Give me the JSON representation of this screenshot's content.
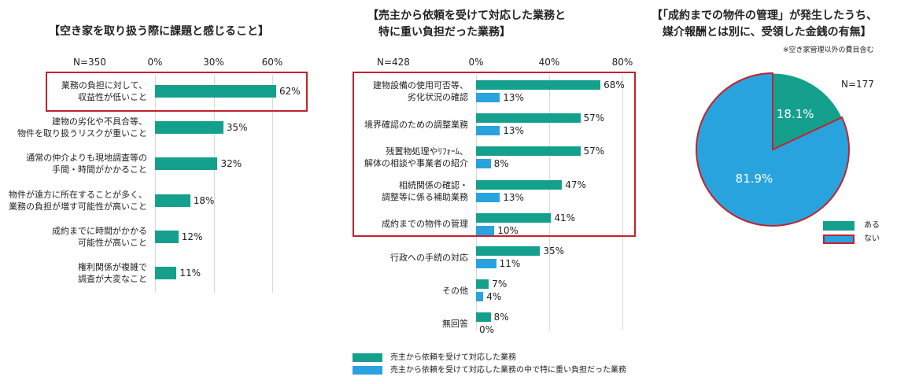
{
  "chart_data": [
    {
      "type": "bar",
      "orientation": "horizontal",
      "title": "【空き家を取り扱う際に課題と感じること】",
      "n_label": "N=350",
      "xlim": [
        0,
        60
      ],
      "x_ticks": [
        "0%",
        "30%",
        "60%"
      ],
      "grid": true,
      "categories": [
        [
          "業務の負担に対して、",
          "収益性が低いこと"
        ],
        [
          "建物の劣化や不具合等、",
          "物件を取り扱うリスクが重いこと"
        ],
        [
          "通常の仲介よりも現地調査等の",
          "手間・時間がかかること"
        ],
        [
          "物件が遠方に所在することが多く、",
          "業務の負担が増す可能性が高いこと"
        ],
        [
          "成約までに時間がかかる",
          "可能性が高いこと"
        ],
        [
          "権利関係が複雑で",
          "調査が大変なこと"
        ]
      ],
      "values": [
        62,
        35,
        32,
        18,
        12,
        11
      ],
      "value_labels": [
        "62%",
        "35%",
        "32%",
        "18%",
        "12%",
        "11%"
      ],
      "highlighted_categories": [
        0
      ],
      "color": "#15a08e"
    },
    {
      "type": "bar",
      "orientation": "horizontal",
      "title": [
        "【売主から依頼を受けて対応した業務と",
        "特に重い負担だった業務】"
      ],
      "n_label": "N=428",
      "xlim": [
        0,
        80
      ],
      "x_ticks": [
        "0%",
        "40%",
        "80%"
      ],
      "grid": true,
      "categories": [
        [
          "建物設備の使用可否等、",
          "劣化状況の確認"
        ],
        [
          "境界確認のための調整業務"
        ],
        [
          "残置物処理やﾘﾌｫｰﾑ、",
          "解体の相談や事業者の紹介"
        ],
        [
          "相続関係の確認・",
          "調整等に係る補助業務"
        ],
        [
          "成約までの物件の管理"
        ],
        [
          "行政への手続の対応"
        ],
        [
          "その他"
        ],
        [
          "無回答"
        ]
      ],
      "series": [
        {
          "name": "売主から依頼を受けて対応した業務",
          "color": "#15a08e",
          "values": [
            68,
            57,
            57,
            47,
            41,
            35,
            7,
            8
          ],
          "value_labels": [
            "68%",
            "57%",
            "57%",
            "47%",
            "41%",
            "35%",
            "7%",
            "8%"
          ]
        },
        {
          "name": "売主から依頼を受けて対応した業務の中で特に重い負担だった業務",
          "color": "#29a3de",
          "values": [
            13,
            13,
            8,
            13,
            10,
            11,
            4,
            0
          ],
          "value_labels": [
            "13%",
            "13%",
            "8%",
            "13%",
            "10%",
            "11%",
            "4%",
            "0%"
          ]
        }
      ],
      "highlighted_categories": [
        0,
        1,
        2,
        3,
        4
      ],
      "legend_position": "bottom"
    },
    {
      "type": "pie",
      "title": [
        "【「成約までの物件の管理」が発生したうち、",
        "媒介報酬とは別に、受領した金銭の有無】"
      ],
      "note": "※空き家管理以外の費目含む",
      "n_label": "N=177",
      "slices": [
        {
          "label": "ある",
          "value": 18.1,
          "value_label": "18.1%",
          "color": "#15a08e"
        },
        {
          "label": "ない",
          "value": 81.9,
          "value_label": "81.9%",
          "color": "#29a3de"
        }
      ],
      "highlighted_slices": [
        1
      ],
      "legend_position": "bottom-right"
    }
  ],
  "colors": {
    "teal": "#15a08e",
    "blue": "#29a3de",
    "highlight": "#c0232f",
    "grid": "#d9d9d9"
  }
}
